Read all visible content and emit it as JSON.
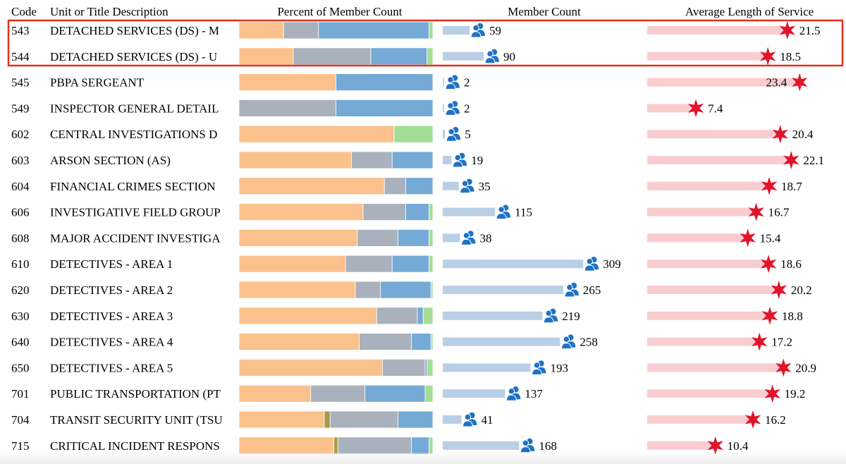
{
  "header": {
    "code": "Code",
    "description": "Unit or Title Description",
    "percent": "Percent of Member Count",
    "member_count": "Member Count",
    "avg_service": "Average Length of Service"
  },
  "colors": {
    "orange": "#fbc18c",
    "gray": "#a9b1bc",
    "blue": "#74aad5",
    "green": "#a4de95",
    "olive": "#a89a42",
    "count_bar": "#b8cfe6",
    "people_icon": "#1f72c4",
    "service_bar": "#f9cdd0",
    "star": "#e0142a",
    "highlight": "#e0321e",
    "text": "#000000"
  },
  "chart_data": {
    "type": "table",
    "columns": [
      "Code",
      "Unit or Title Description",
      "Percent of Member Count",
      "Member Count",
      "Average Length of Service"
    ],
    "percent_segment_order": [
      "orange",
      "olive",
      "gray",
      "blue",
      "green"
    ],
    "highlighted_codes": [
      "543",
      "544"
    ],
    "rows": [
      {
        "code": "543",
        "desc": "DETACHED SERVICES (DS) - M",
        "segments": [
          23,
          0,
          18,
          57,
          2
        ],
        "count": 59,
        "count_label": "59",
        "avg": 21.5,
        "avg_label": "21.5"
      },
      {
        "code": "544",
        "desc": "DETACHED SERVICES (DS) - U",
        "segments": [
          28,
          0,
          40,
          29,
          3
        ],
        "count": 90,
        "count_label": "90",
        "avg": 18.5,
        "avg_label": "18.5"
      },
      {
        "code": "545",
        "desc": "PBPA SERGEANT",
        "segments": [
          50,
          0,
          0,
          50,
          0
        ],
        "count": 2,
        "count_label": "2",
        "avg": 23.4,
        "avg_label": "23.4"
      },
      {
        "code": "549",
        "desc": "INSPECTOR GENERAL DETAIL",
        "segments": [
          0,
          0,
          50,
          50,
          0
        ],
        "count": 2,
        "count_label": "2",
        "avg": 7.4,
        "avg_label": "7.4"
      },
      {
        "code": "602",
        "desc": "CENTRAL INVESTIGATIONS D",
        "segments": [
          80,
          0,
          0,
          0,
          20
        ],
        "count": 5,
        "count_label": "5",
        "avg": 20.4,
        "avg_label": "20.4"
      },
      {
        "code": "603",
        "desc": "ARSON SECTION (AS)",
        "segments": [
          58,
          0,
          21,
          21,
          0
        ],
        "count": 19,
        "count_label": "19",
        "avg": 22.1,
        "avg_label": "22.1"
      },
      {
        "code": "604",
        "desc": "FINANCIAL CRIMES SECTION",
        "segments": [
          75,
          0,
          11,
          14,
          0
        ],
        "count": 35,
        "count_label": "35",
        "avg": 18.7,
        "avg_label": "18.7"
      },
      {
        "code": "606",
        "desc": "INVESTIGATIVE FIELD GROUP",
        "segments": [
          64,
          0,
          22,
          12,
          2
        ],
        "count": 115,
        "count_label": "115",
        "avg": 16.7,
        "avg_label": "16.7"
      },
      {
        "code": "608",
        "desc": "MAJOR ACCIDENT INVESTIGA",
        "segments": [
          61,
          0,
          21,
          16,
          2
        ],
        "count": 38,
        "count_label": "38",
        "avg": 15.4,
        "avg_label": "15.4"
      },
      {
        "code": "610",
        "desc": "DETECTIVES - AREA 1",
        "segments": [
          55,
          0,
          24,
          19,
          2
        ],
        "count": 309,
        "count_label": "309",
        "avg": 18.6,
        "avg_label": "18.6"
      },
      {
        "code": "620",
        "desc": "DETECTIVES - AREA 2",
        "segments": [
          60,
          0,
          13,
          26,
          1
        ],
        "count": 265,
        "count_label": "265",
        "avg": 20.2,
        "avg_label": "20.2"
      },
      {
        "code": "630",
        "desc": "DETECTIVES - AREA 3",
        "segments": [
          71,
          0,
          21,
          3,
          5
        ],
        "count": 219,
        "count_label": "219",
        "avg": 18.8,
        "avg_label": "18.8"
      },
      {
        "code": "640",
        "desc": "DETECTIVES - AREA 4",
        "segments": [
          62,
          0,
          27,
          10,
          1
        ],
        "count": 258,
        "count_label": "258",
        "avg": 17.2,
        "avg_label": "17.2"
      },
      {
        "code": "650",
        "desc": "DETECTIVES - AREA 5",
        "segments": [
          74,
          0,
          22,
          1,
          3
        ],
        "count": 193,
        "count_label": "193",
        "avg": 20.9,
        "avg_label": "20.9"
      },
      {
        "code": "701",
        "desc": "PUBLIC TRANSPORTATION (PT",
        "segments": [
          37,
          0,
          28,
          31,
          4
        ],
        "count": 137,
        "count_label": "137",
        "avg": 19.2,
        "avg_label": "19.2"
      },
      {
        "code": "704",
        "desc": "TRANSIT SECURITY UNIT (TSU",
        "segments": [
          44,
          3,
          35,
          18,
          0
        ],
        "count": 41,
        "count_label": "41",
        "avg": 16.2,
        "avg_label": "16.2"
      },
      {
        "code": "715",
        "desc": "CRITICAL INCIDENT RESPONS",
        "segments": [
          49,
          2,
          38,
          9,
          2
        ],
        "count": 168,
        "count_label": "168",
        "avg": 10.4,
        "avg_label": "10.4"
      }
    ]
  }
}
